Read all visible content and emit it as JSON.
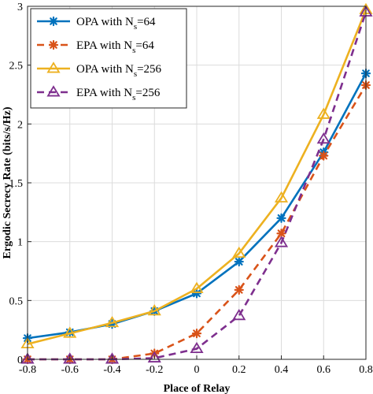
{
  "chart_data": {
    "type": "line",
    "xlabel": "Place of Relay",
    "ylabel": "Ergodic Secrecy Rate (bits/s/Hz)",
    "x": [
      -0.8,
      -0.6,
      -0.4,
      -0.2,
      0,
      0.2,
      0.4,
      0.6,
      0.8
    ],
    "xlim": [
      -0.8,
      0.8
    ],
    "ylim": [
      0,
      3
    ],
    "xticks": [
      "-0.8",
      "-0.6",
      "-0.4",
      "-0.2",
      "0",
      "0.2",
      "0.4",
      "0.6",
      "0.8"
    ],
    "yticks": [
      "0",
      "0.5",
      "1",
      "1.5",
      "2",
      "2.5",
      "3"
    ],
    "grid": true,
    "legend_position": "top-left",
    "series": [
      {
        "name": "OPA with N_s=64",
        "legend_main": "OPA with N",
        "legend_sub": "s",
        "legend_tail": "=64",
        "color": "#0072BD",
        "dash": "solid",
        "marker": "star",
        "values": [
          0.18,
          0.23,
          0.3,
          0.41,
          0.56,
          0.83,
          1.2,
          1.76,
          2.43
        ]
      },
      {
        "name": "EPA with N_s=64",
        "legend_main": "EPA with N",
        "legend_sub": "s",
        "legend_tail": "=64",
        "color": "#D95319",
        "dash": "dashed",
        "marker": "star",
        "values": [
          0.0,
          0.0,
          0.0,
          0.05,
          0.22,
          0.59,
          1.07,
          1.73,
          2.33
        ]
      },
      {
        "name": "OPA with N_s=256",
        "legend_main": "OPA with N",
        "legend_sub": "s",
        "legend_tail": "=256",
        "color": "#EDB120",
        "dash": "solid",
        "marker": "triangle",
        "values": [
          0.13,
          0.22,
          0.31,
          0.41,
          0.6,
          0.9,
          1.37,
          2.08,
          2.97
        ]
      },
      {
        "name": "EPA with N_s=256",
        "legend_main": "EPA with N",
        "legend_sub": "s",
        "legend_tail": "=256",
        "color": "#7E2F8E",
        "dash": "dashed",
        "marker": "triangle",
        "values": [
          0.0,
          0.0,
          0.0,
          0.01,
          0.09,
          0.37,
          0.99,
          1.87,
          2.95
        ]
      }
    ]
  }
}
